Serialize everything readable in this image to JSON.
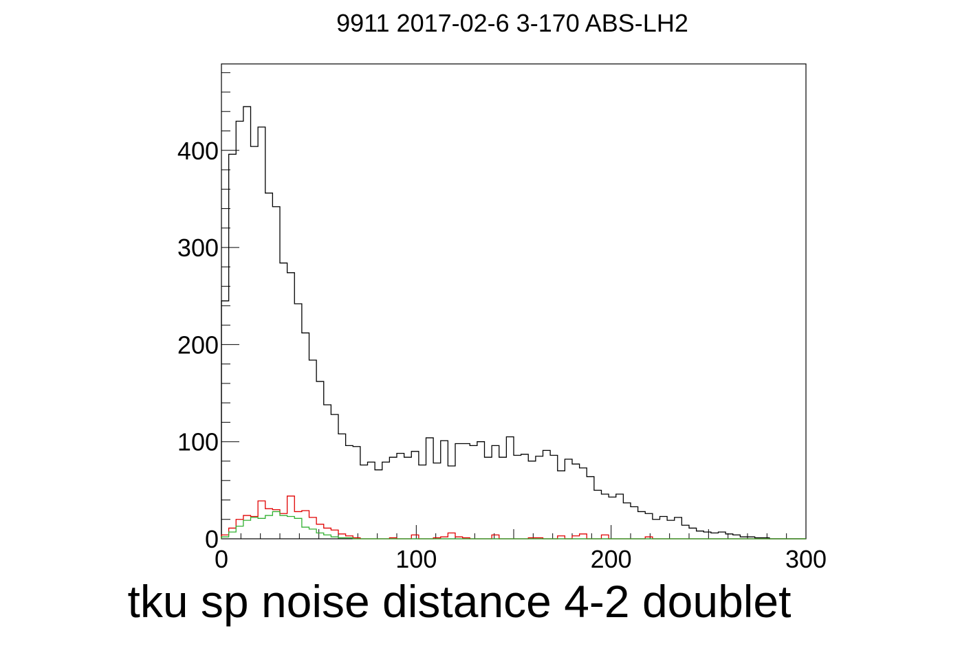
{
  "chart_data": {
    "type": "histogram",
    "title": "9911 2017-02-6 3-170 ABS-LH2",
    "xlabel": "tku sp noise distance 4-2 doublet",
    "ylabel": "",
    "xlim": [
      0,
      300
    ],
    "ylim": [
      0,
      489
    ],
    "bin_width": 3.75,
    "x_ticks": [
      "0",
      "100",
      "200",
      "300"
    ],
    "y_ticks": [
      "0",
      "100",
      "200",
      "300",
      "400"
    ],
    "x_tick_values": [
      0,
      100,
      200,
      300
    ],
    "y_tick_values": [
      0,
      100,
      200,
      300,
      400
    ],
    "grid": false,
    "legend": false,
    "series": [
      {
        "color": "#000000",
        "values": [
          245,
          396,
          430,
          445,
          404,
          424,
          356,
          342,
          284,
          274,
          242,
          212,
          184,
          162,
          138,
          128,
          108,
          96,
          95,
          76,
          79,
          71,
          79,
          84,
          88,
          84,
          90,
          76,
          104,
          78,
          101,
          75,
          98,
          98,
          96,
          100,
          84,
          96,
          84,
          105,
          86,
          87,
          80,
          85,
          91,
          86,
          70,
          82,
          77,
          73,
          64,
          50,
          46,
          43,
          46,
          37,
          33,
          28,
          26,
          20,
          23,
          19,
          22,
          14,
          11,
          8,
          7,
          6,
          7,
          5,
          4,
          2,
          2,
          1,
          1,
          0,
          0,
          0,
          0,
          0
        ]
      },
      {
        "color": "#e00000",
        "values": [
          4,
          11,
          20,
          24,
          23,
          39,
          31,
          30,
          26,
          44,
          28,
          29,
          22,
          15,
          11,
          9,
          5,
          3,
          1,
          0,
          0,
          0,
          0,
          1,
          0,
          0,
          4,
          0,
          0,
          1,
          2,
          6,
          2,
          1,
          0,
          0,
          0,
          4,
          0,
          0,
          0,
          0,
          1,
          1,
          0,
          0,
          3,
          0,
          3,
          5,
          0,
          0,
          4,
          0,
          0,
          0,
          0,
          0,
          2,
          0,
          0,
          0,
          0,
          0,
          0,
          0,
          0,
          0,
          0,
          0,
          0,
          0,
          0,
          0,
          0,
          0,
          0,
          0,
          0,
          0
        ]
      },
      {
        "color": "#30b030",
        "values": [
          2,
          7,
          13,
          19,
          22,
          21,
          24,
          28,
          24,
          23,
          21,
          12,
          10,
          6,
          4,
          2,
          1,
          1,
          0,
          0,
          0,
          0,
          0,
          0,
          0,
          0,
          0,
          0,
          0,
          0,
          0,
          0,
          0,
          0,
          0,
          0,
          0,
          0,
          0,
          0,
          0,
          0,
          0,
          0,
          0,
          0,
          0,
          0,
          0,
          0,
          0,
          0,
          0,
          0,
          0,
          0,
          0,
          0,
          0,
          0,
          0,
          0,
          0,
          0,
          0,
          0,
          0,
          0,
          0,
          0,
          0,
          0,
          0,
          0,
          0,
          0,
          0,
          0,
          0,
          0
        ]
      }
    ]
  }
}
